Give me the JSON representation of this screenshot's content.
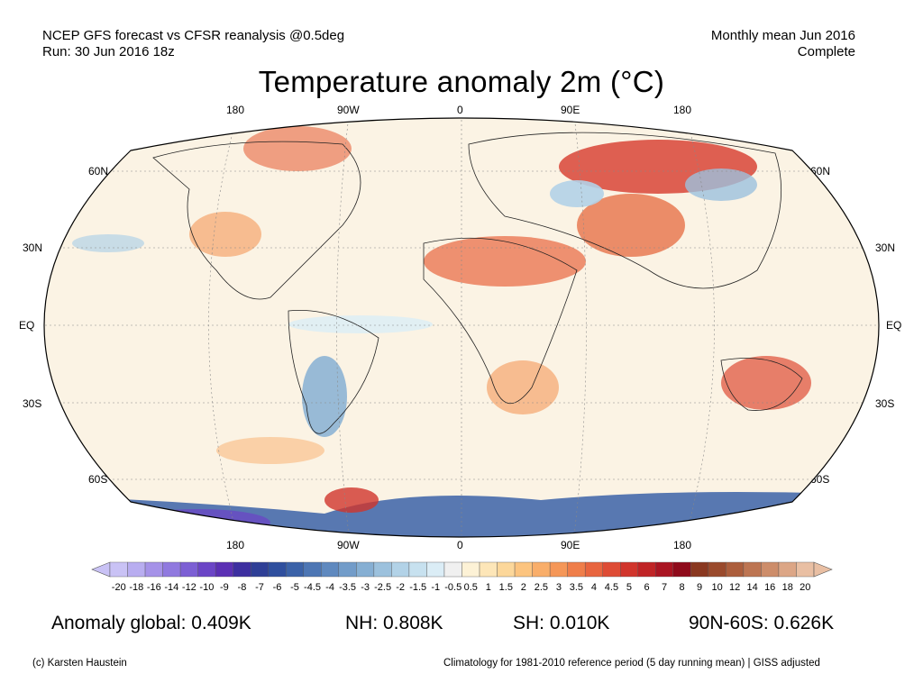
{
  "header": {
    "line1": "NCEP GFS forecast vs CFSR reanalysis @0.5deg",
    "line2": "Run: 30 Jun 2016 18z",
    "right1": "Monthly mean Jun 2016",
    "right2": "Complete"
  },
  "title": "Temperature anomaly 2m (°C)",
  "map": {
    "lon_labels": [
      "180",
      "90W",
      "0",
      "90E",
      "180"
    ],
    "lat_labels_left": [
      "60N",
      "30N",
      "EQ",
      "30S",
      "60S"
    ],
    "lat_labels_right": [
      "60N",
      "30N",
      "EQ",
      "30S",
      "60S"
    ],
    "projection": "Robinson",
    "grid": true
  },
  "colorbar": {
    "ticks": [
      "-20",
      "-18",
      "-16",
      "-14",
      "-12",
      "-10",
      "-9",
      "-8",
      "-7",
      "-6",
      "-5",
      "-4.5",
      "-4",
      "-3.5",
      "-3",
      "-2.5",
      "-2",
      "-1.5",
      "-1",
      "-0.5",
      "0.5",
      "1",
      "1.5",
      "2",
      "2.5",
      "3",
      "3.5",
      "4",
      "4.5",
      "5",
      "6",
      "7",
      "8",
      "9",
      "10",
      "12",
      "14",
      "16",
      "18",
      "20"
    ],
    "colors": [
      "#c9c2f5",
      "#b8adf0",
      "#a592e8",
      "#9079df",
      "#7c5fd4",
      "#6b45c6",
      "#5b30b4",
      "#3d2fa0",
      "#2f3f96",
      "#2f4f9e",
      "#3b62a8",
      "#4d76b4",
      "#5f89bf",
      "#729cc9",
      "#86afd3",
      "#9cc1dd",
      "#b2d2e7",
      "#c7e1ef",
      "#dbedf6",
      "#f0f0f0",
      "#fdf2d6",
      "#fde6b8",
      "#fcd79a",
      "#fcc47f",
      "#f9ae6a",
      "#f59758",
      "#ef7e4a",
      "#e8653f",
      "#de4c35",
      "#d1352c",
      "#c02426",
      "#aa1522",
      "#8f0b1b",
      "#8a3820",
      "#9a4a2c",
      "#ac5e3c",
      "#bd7552",
      "#cd8d6a",
      "#dca686",
      "#e9bfa3"
    ]
  },
  "stats": {
    "global": "Anomaly global: 0.409K",
    "nh": "NH: 0.808K",
    "sh": "SH: 0.010K",
    "arctic": "90N-60S: 0.626K"
  },
  "footer": {
    "credit": "(c) Karsten Haustein",
    "note": "Climatology for 1981-2010 reference period (5 day running mean) | GISS adjusted"
  }
}
